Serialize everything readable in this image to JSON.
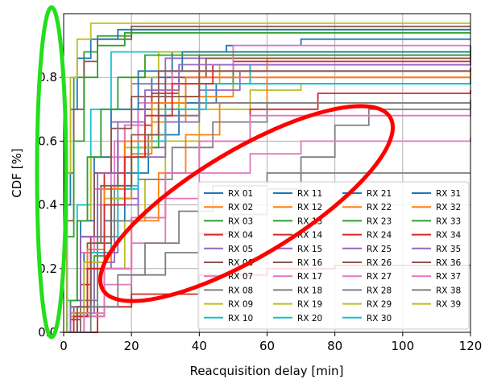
{
  "chart_data": {
    "type": "line",
    "xlabel": "Reacquisition delay [min]",
    "ylabel": "CDF [%]",
    "xlim": [
      0,
      120
    ],
    "ylim": [
      0,
      1.0
    ],
    "xticks": [
      0,
      20,
      40,
      60,
      80,
      100,
      120
    ],
    "yticks": [
      0.0,
      0.2,
      0.4,
      0.6,
      0.8
    ],
    "ytick_labels": [
      "0.0",
      "0.2",
      "0.4",
      "0.6",
      "0.8"
    ],
    "grid": true,
    "legend_placement": "lower-right",
    "legend_columns": 4,
    "colors": [
      "#1f77b4",
      "#ff7f0e",
      "#2ca02c",
      "#d62728",
      "#9467bd",
      "#8c564b",
      "#e377c2",
      "#7f7f7f",
      "#bcbd22",
      "#17becf"
    ],
    "series": [
      {
        "name": "RX 01",
        "x": [
          0,
          2,
          6,
          10,
          16,
          22,
          26,
          32,
          48,
          70,
          120
        ],
        "y": [
          0,
          0.05,
          0.25,
          0.45,
          0.6,
          0.7,
          0.8,
          0.88,
          0.9,
          0.92,
          0.92
        ]
      },
      {
        "name": "RX 02",
        "x": [
          0,
          3,
          8,
          14,
          20,
          28,
          40,
          60,
          120
        ],
        "y": [
          0,
          0.06,
          0.25,
          0.45,
          0.6,
          0.72,
          0.82,
          0.86,
          0.87
        ]
      },
      {
        "name": "RX 03",
        "x": [
          0,
          1,
          3,
          6,
          10,
          20,
          120
        ],
        "y": [
          0,
          0.5,
          0.8,
          0.88,
          0.93,
          0.95,
          0.95
        ]
      },
      {
        "name": "RX 04",
        "x": [
          0,
          2,
          5,
          8,
          12,
          18,
          26,
          34,
          50,
          120
        ],
        "y": [
          0,
          0.04,
          0.15,
          0.3,
          0.5,
          0.65,
          0.75,
          0.8,
          0.85,
          0.86
        ]
      },
      {
        "name": "RX 05",
        "x": [
          0,
          4,
          10,
          16,
          22,
          30,
          40,
          55,
          120
        ],
        "y": [
          0,
          0.06,
          0.25,
          0.42,
          0.58,
          0.68,
          0.78,
          0.84,
          0.85
        ]
      },
      {
        "name": "RX 06",
        "x": [
          0,
          1,
          3,
          6,
          10,
          20,
          120
        ],
        "y": [
          0,
          0.35,
          0.7,
          0.85,
          0.92,
          0.96,
          0.96
        ]
      },
      {
        "name": "RX 07",
        "x": [
          0,
          2,
          6,
          10,
          14,
          18,
          24,
          30,
          40,
          120
        ],
        "y": [
          0,
          0.05,
          0.2,
          0.4,
          0.55,
          0.65,
          0.72,
          0.78,
          0.8,
          0.8
        ]
      },
      {
        "name": "RX 08",
        "x": [
          0,
          10,
          20,
          30,
          40,
          50,
          60,
          70,
          80,
          90,
          120
        ],
        "y": [
          0,
          0.08,
          0.18,
          0.25,
          0.31,
          0.37,
          0.45,
          0.55,
          0.65,
          0.7,
          0.72
        ]
      },
      {
        "name": "RX 09",
        "x": [
          0,
          6,
          12,
          18,
          24,
          30,
          40,
          55,
          70,
          120
        ],
        "y": [
          0,
          0.06,
          0.2,
          0.35,
          0.48,
          0.6,
          0.7,
          0.76,
          0.78,
          0.79
        ]
      },
      {
        "name": "RX 10",
        "x": [
          0,
          1,
          4,
          8,
          14,
          120
        ],
        "y": [
          0,
          0.1,
          0.4,
          0.7,
          0.88,
          0.9
        ]
      },
      {
        "name": "RX 11",
        "x": [
          0,
          3,
          7,
          12,
          18,
          25,
          34,
          45,
          120
        ],
        "y": [
          0,
          0.05,
          0.2,
          0.35,
          0.5,
          0.62,
          0.72,
          0.78,
          0.79
        ]
      },
      {
        "name": "RX 12",
        "x": [
          0,
          5,
          12,
          20,
          28,
          36,
          46,
          60,
          120
        ],
        "y": [
          0,
          0.05,
          0.2,
          0.35,
          0.5,
          0.62,
          0.72,
          0.8,
          0.82
        ]
      },
      {
        "name": "RX 13",
        "x": [
          0,
          4,
          9,
          14,
          20,
          28,
          36,
          50,
          120
        ],
        "y": [
          0,
          0.06,
          0.24,
          0.42,
          0.58,
          0.7,
          0.78,
          0.84,
          0.85
        ]
      },
      {
        "name": "RX 14",
        "x": [
          0,
          5,
          12,
          20,
          30,
          40,
          55,
          75,
          120
        ],
        "y": [
          0,
          0.05,
          0.2,
          0.36,
          0.5,
          0.6,
          0.7,
          0.75,
          0.76
        ]
      },
      {
        "name": "RX 15",
        "x": [
          0,
          2,
          5,
          9,
          14,
          20,
          30,
          120
        ],
        "y": [
          0,
          0.08,
          0.3,
          0.5,
          0.66,
          0.78,
          0.86,
          0.88
        ]
      },
      {
        "name": "RX 16",
        "x": [
          0,
          3,
          7,
          11,
          16,
          22,
          30,
          42,
          120
        ],
        "y": [
          0,
          0.08,
          0.28,
          0.46,
          0.6,
          0.7,
          0.8,
          0.86,
          0.87
        ]
      },
      {
        "name": "RX 17",
        "x": [
          0,
          2,
          5,
          9,
          15,
          22,
          32,
          50,
          120
        ],
        "y": [
          0,
          0.06,
          0.25,
          0.45,
          0.6,
          0.72,
          0.82,
          0.9,
          0.9
        ]
      },
      {
        "name": "RX 18",
        "x": [
          0,
          4,
          8,
          14,
          22,
          32,
          44,
          60,
          120
        ],
        "y": [
          0,
          0.05,
          0.2,
          0.35,
          0.48,
          0.58,
          0.66,
          0.72,
          0.73
        ]
      },
      {
        "name": "RX 19",
        "x": [
          0,
          2,
          4,
          8,
          14,
          20,
          28,
          120
        ],
        "y": [
          0,
          0.1,
          0.35,
          0.55,
          0.7,
          0.8,
          0.88,
          0.89
        ]
      },
      {
        "name": "RX 20",
        "x": [
          0,
          4,
          10,
          16,
          22,
          30,
          40,
          55,
          120
        ],
        "y": [
          0,
          0.08,
          0.3,
          0.46,
          0.6,
          0.7,
          0.78,
          0.84,
          0.85
        ]
      },
      {
        "name": "RX 21",
        "x": [
          0,
          2,
          5,
          9,
          14,
          22,
          35,
          120
        ],
        "y": [
          0,
          0.1,
          0.35,
          0.55,
          0.7,
          0.82,
          0.88,
          0.9
        ]
      },
      {
        "name": "RX 22",
        "x": [
          0,
          3,
          8,
          14,
          20,
          26,
          36,
          50,
          120
        ],
        "y": [
          0,
          0.05,
          0.22,
          0.42,
          0.56,
          0.66,
          0.74,
          0.78,
          0.78
        ]
      },
      {
        "name": "RX 23",
        "x": [
          0,
          1,
          3,
          6,
          10,
          18,
          120
        ],
        "y": [
          0,
          0.3,
          0.6,
          0.8,
          0.9,
          0.94,
          0.94
        ]
      },
      {
        "name": "RX 24",
        "x": [
          0,
          10,
          20,
          40,
          60,
          80,
          100,
          120
        ],
        "y": [
          0,
          0.08,
          0.12,
          0.18,
          0.2,
          0.21,
          0.21,
          0.21
        ]
      },
      {
        "name": "RX 25",
        "x": [
          0,
          4,
          9,
          15,
          22,
          30,
          40,
          52,
          120
        ],
        "y": [
          0,
          0.06,
          0.22,
          0.4,
          0.55,
          0.66,
          0.76,
          0.82,
          0.83
        ]
      },
      {
        "name": "RX 26",
        "x": [
          0,
          2,
          5,
          9,
          14,
          20,
          28,
          40,
          120
        ],
        "y": [
          0,
          0.08,
          0.3,
          0.5,
          0.64,
          0.74,
          0.82,
          0.87,
          0.88
        ]
      },
      {
        "name": "RX 27",
        "x": [
          0,
          6,
          12,
          20,
          30,
          40,
          55,
          70,
          120
        ],
        "y": [
          0,
          0.05,
          0.15,
          0.28,
          0.42,
          0.5,
          0.56,
          0.6,
          0.61
        ]
      },
      {
        "name": "RX 28",
        "x": [
          0,
          5,
          10,
          15,
          20,
          25,
          30,
          40,
          120
        ],
        "y": [
          0,
          0.1,
          0.3,
          0.45,
          0.55,
          0.62,
          0.68,
          0.72,
          0.72
        ]
      },
      {
        "name": "RX 29",
        "x": [
          0,
          2,
          6,
          12,
          18,
          26,
          34,
          46,
          120
        ],
        "y": [
          0,
          0.05,
          0.22,
          0.42,
          0.58,
          0.7,
          0.78,
          0.84,
          0.85
        ]
      },
      {
        "name": "RX 30",
        "x": [
          0,
          3,
          8,
          14,
          22,
          30,
          42,
          120
        ],
        "y": [
          0,
          0.06,
          0.25,
          0.45,
          0.6,
          0.7,
          0.78,
          0.8
        ]
      },
      {
        "name": "RX 31",
        "x": [
          0,
          1,
          2,
          4,
          8,
          16,
          120
        ],
        "y": [
          0,
          0.4,
          0.7,
          0.86,
          0.92,
          0.95,
          0.95
        ]
      },
      {
        "name": "RX 32",
        "x": [
          0,
          3,
          7,
          12,
          18,
          26,
          36,
          120
        ],
        "y": [
          0,
          0.06,
          0.26,
          0.45,
          0.6,
          0.72,
          0.8,
          0.82
        ]
      },
      {
        "name": "RX 33",
        "x": [
          0,
          2,
          4,
          7,
          11,
          16,
          24,
          120
        ],
        "y": [
          0,
          0.1,
          0.35,
          0.55,
          0.7,
          0.8,
          0.87,
          0.89
        ]
      },
      {
        "name": "RX 34",
        "x": [
          0,
          3,
          7,
          12,
          18,
          24,
          32,
          44,
          120
        ],
        "y": [
          0,
          0.05,
          0.2,
          0.4,
          0.55,
          0.68,
          0.78,
          0.84,
          0.85
        ]
      },
      {
        "name": "RX 35",
        "x": [
          0,
          2,
          5,
          10,
          16,
          24,
          34,
          120
        ],
        "y": [
          0,
          0.08,
          0.3,
          0.5,
          0.66,
          0.76,
          0.84,
          0.86
        ]
      },
      {
        "name": "RX 36",
        "x": [
          0,
          4,
          8,
          14,
          20,
          28,
          40,
          120
        ],
        "y": [
          0,
          0.08,
          0.28,
          0.46,
          0.62,
          0.74,
          0.82,
          0.83
        ]
      },
      {
        "name": "RX 37",
        "x": [
          0,
          6,
          12,
          20,
          30,
          40,
          55,
          120
        ],
        "y": [
          0,
          0.06,
          0.2,
          0.36,
          0.5,
          0.6,
          0.68,
          0.7
        ]
      },
      {
        "name": "RX 38",
        "x": [
          0,
          8,
          16,
          24,
          34,
          44,
          60,
          120
        ],
        "y": [
          0,
          0.08,
          0.18,
          0.28,
          0.38,
          0.46,
          0.5,
          0.5
        ]
      },
      {
        "name": "RX 39",
        "x": [
          0,
          1,
          2,
          4,
          8,
          120
        ],
        "y": [
          0,
          0.5,
          0.8,
          0.92,
          0.97,
          0.97
        ]
      }
    ],
    "annotations": [
      {
        "shape": "ellipse",
        "color": "#22e01b",
        "note": "highlights the near-zero reacquisition delays"
      },
      {
        "shape": "ellipse",
        "color": "#ff0000",
        "note": "highlights slow-rising curves"
      }
    ]
  }
}
